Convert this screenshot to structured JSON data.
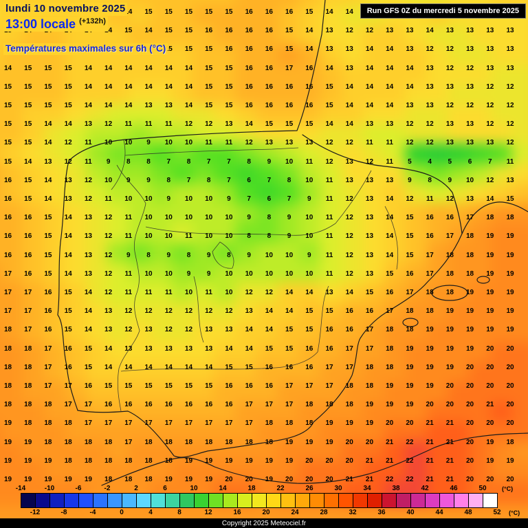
{
  "header": {
    "date_line": "lundi 10 novembre 2025",
    "time_line": "13:00 locale",
    "offset": "(+132h)",
    "subtitle": "Températures maximales sur 6h (°C)"
  },
  "run_info": {
    "label": "Run GFS 0Z du mercredi 5 novembre 2025"
  },
  "footer": {
    "copyright": "Copyright 2025 Meteociel.fr"
  },
  "legend": {
    "top_ticks": [
      -14,
      -10,
      -6,
      -2,
      2,
      6,
      10,
      14,
      18,
      22,
      26,
      30,
      34,
      38,
      42,
      46,
      50
    ],
    "bottom_ticks": [
      -12,
      -8,
      -4,
      0,
      4,
      8,
      12,
      16,
      20,
      24,
      28,
      32,
      36,
      40,
      44,
      48,
      52
    ],
    "unit": "(°C)",
    "segment_colors": [
      "#05054f",
      "#0a0a8c",
      "#1020c0",
      "#1837e8",
      "#2050ff",
      "#2a73ff",
      "#3896ff",
      "#4ab8ff",
      "#5cd8ff",
      "#50e0d8",
      "#3cd4a0",
      "#2fc860",
      "#38d232",
      "#6fe024",
      "#a8ea1e",
      "#d8ee1e",
      "#f2e81e",
      "#ffd816",
      "#ffc010",
      "#ffa80a",
      "#ff8c04",
      "#ff7000",
      "#ff5400",
      "#f23800",
      "#e02000",
      "#cc1430",
      "#c01e66",
      "#cc2a96",
      "#dc3cc0",
      "#ee58dc",
      "#ff80ea",
      "#ffb0f2",
      "#ffffff"
    ]
  },
  "map": {
    "grid": {
      "temps": [
        [
          14,
          14,
          14,
          14,
          14,
          14,
          14,
          15,
          15,
          15,
          15,
          15,
          16,
          16,
          16,
          15,
          14,
          14,
          13,
          13,
          12,
          12,
          13,
          13,
          14,
          14
        ],
        [
          13,
          14,
          14,
          14,
          14,
          14,
          15,
          14,
          15,
          15,
          16,
          16,
          16,
          16,
          15,
          14,
          13,
          12,
          12,
          13,
          13,
          14,
          13,
          13,
          13,
          13
        ],
        [
          14,
          14,
          15,
          15,
          14,
          14,
          14,
          15,
          15,
          15,
          15,
          16,
          16,
          16,
          15,
          14,
          13,
          13,
          14,
          14,
          13,
          12,
          12,
          13,
          13,
          13
        ],
        [
          14,
          15,
          15,
          15,
          14,
          14,
          14,
          14,
          14,
          14,
          15,
          15,
          16,
          16,
          17,
          16,
          14,
          13,
          14,
          14,
          14,
          13,
          12,
          12,
          13,
          13
        ],
        [
          15,
          15,
          15,
          15,
          14,
          14,
          14,
          14,
          14,
          14,
          15,
          15,
          16,
          16,
          16,
          16,
          15,
          14,
          14,
          14,
          14,
          13,
          13,
          13,
          12,
          12
        ],
        [
          15,
          15,
          15,
          15,
          14,
          14,
          14,
          13,
          13,
          14,
          15,
          15,
          16,
          16,
          16,
          16,
          15,
          14,
          14,
          14,
          13,
          13,
          12,
          12,
          12,
          12
        ],
        [
          15,
          15,
          14,
          14,
          13,
          12,
          11,
          11,
          11,
          12,
          12,
          13,
          14,
          15,
          15,
          15,
          14,
          14,
          13,
          13,
          12,
          12,
          13,
          13,
          12,
          12
        ],
        [
          15,
          15,
          14,
          12,
          11,
          10,
          10,
          9,
          10,
          10,
          11,
          11,
          12,
          13,
          13,
          13,
          12,
          12,
          11,
          11,
          12,
          12,
          13,
          13,
          13,
          12
        ],
        [
          15,
          14,
          13,
          12,
          11,
          9,
          8,
          8,
          7,
          8,
          7,
          7,
          8,
          9,
          10,
          11,
          12,
          13,
          12,
          11,
          5,
          4,
          5,
          6,
          7,
          11
        ],
        [
          16,
          15,
          14,
          13,
          12,
          10,
          9,
          9,
          8,
          7,
          8,
          7,
          6,
          7,
          8,
          10,
          11,
          13,
          13,
          13,
          9,
          8,
          9,
          10,
          12,
          13
        ],
        [
          16,
          15,
          14,
          13,
          12,
          11,
          10,
          10,
          9,
          10,
          10,
          9,
          7,
          6,
          7,
          9,
          11,
          12,
          13,
          14,
          12,
          11,
          12,
          13,
          14,
          15
        ],
        [
          16,
          16,
          15,
          14,
          13,
          12,
          11,
          10,
          10,
          10,
          10,
          10,
          9,
          8,
          9,
          10,
          11,
          12,
          13,
          14,
          15,
          16,
          16,
          17,
          18,
          18
        ],
        [
          16,
          16,
          15,
          14,
          13,
          12,
          11,
          10,
          10,
          11,
          10,
          10,
          8,
          8,
          9,
          10,
          11,
          12,
          13,
          14,
          15,
          16,
          17,
          18,
          19,
          19
        ],
        [
          16,
          16,
          15,
          14,
          13,
          12,
          9,
          8,
          9,
          8,
          9,
          8,
          9,
          10,
          10,
          9,
          11,
          12,
          13,
          14,
          15,
          17,
          18,
          18,
          19,
          19
        ],
        [
          17,
          16,
          15,
          14,
          13,
          12,
          11,
          10,
          10,
          9,
          9,
          10,
          10,
          10,
          10,
          10,
          11,
          12,
          13,
          15,
          16,
          17,
          18,
          18,
          19,
          19
        ],
        [
          17,
          17,
          16,
          15,
          14,
          12,
          11,
          11,
          11,
          10,
          11,
          10,
          12,
          12,
          14,
          14,
          13,
          14,
          15,
          16,
          17,
          18,
          18,
          19,
          19,
          19
        ],
        [
          17,
          17,
          16,
          15,
          14,
          13,
          12,
          12,
          12,
          12,
          12,
          12,
          13,
          14,
          14,
          15,
          15,
          16,
          16,
          17,
          18,
          18,
          19,
          19,
          19,
          19
        ],
        [
          18,
          17,
          16,
          15,
          14,
          13,
          12,
          13,
          12,
          12,
          13,
          13,
          14,
          14,
          15,
          15,
          16,
          16,
          17,
          18,
          18,
          19,
          19,
          19,
          19,
          19
        ],
        [
          18,
          18,
          17,
          16,
          15,
          14,
          13,
          13,
          13,
          13,
          13,
          14,
          14,
          15,
          15,
          16,
          16,
          17,
          17,
          18,
          19,
          19,
          19,
          19,
          20,
          20
        ],
        [
          18,
          18,
          17,
          16,
          15,
          14,
          14,
          14,
          14,
          14,
          14,
          15,
          15,
          16,
          16,
          16,
          17,
          17,
          18,
          18,
          19,
          19,
          19,
          20,
          20,
          20
        ],
        [
          18,
          18,
          17,
          17,
          16,
          15,
          15,
          15,
          15,
          15,
          15,
          16,
          16,
          16,
          17,
          17,
          17,
          18,
          18,
          19,
          19,
          19,
          20,
          20,
          20,
          20
        ],
        [
          18,
          18,
          18,
          17,
          17,
          16,
          16,
          16,
          16,
          16,
          16,
          16,
          17,
          17,
          17,
          18,
          18,
          18,
          19,
          19,
          19,
          20,
          20,
          20,
          21,
          20
        ],
        [
          19,
          18,
          18,
          18,
          17,
          17,
          17,
          17,
          17,
          17,
          17,
          17,
          17,
          18,
          18,
          18,
          19,
          19,
          19,
          20,
          20,
          21,
          21,
          20,
          20,
          20
        ],
        [
          19,
          19,
          18,
          18,
          18,
          18,
          17,
          18,
          18,
          18,
          18,
          18,
          18,
          18,
          19,
          19,
          19,
          20,
          20,
          21,
          22,
          21,
          21,
          20,
          19,
          18
        ],
        [
          19,
          19,
          19,
          18,
          18,
          18,
          18,
          18,
          18,
          19,
          19,
          19,
          19,
          19,
          19,
          20,
          20,
          20,
          21,
          21,
          22,
          21,
          21,
          20,
          19,
          19
        ],
        [
          19,
          19,
          19,
          19,
          19,
          18,
          18,
          18,
          19,
          19,
          19,
          20,
          20,
          19,
          20,
          20,
          20,
          21,
          21,
          22,
          22,
          21,
          21,
          20,
          20,
          20
        ]
      ]
    },
    "palette": [
      [
        3,
        "#1fc83c"
      ],
      [
        5,
        "#2bd22e"
      ],
      [
        7,
        "#55e022"
      ],
      [
        9,
        "#a0e924"
      ],
      [
        11,
        "#dcee2c"
      ],
      [
        13,
        "#fcdc2e"
      ],
      [
        15,
        "#ffc128"
      ],
      [
        17,
        "#ffa222"
      ],
      [
        19,
        "#ff8a1e"
      ],
      [
        21,
        "#ff5f1a"
      ],
      [
        23,
        "#e63050"
      ]
    ]
  },
  "colors": {
    "header_bg": "#ffd22c",
    "date_text": "#061060",
    "time_text": "#0a28f0",
    "subtitle_text": "#1428dc",
    "sea_base": "#ff9a20"
  }
}
